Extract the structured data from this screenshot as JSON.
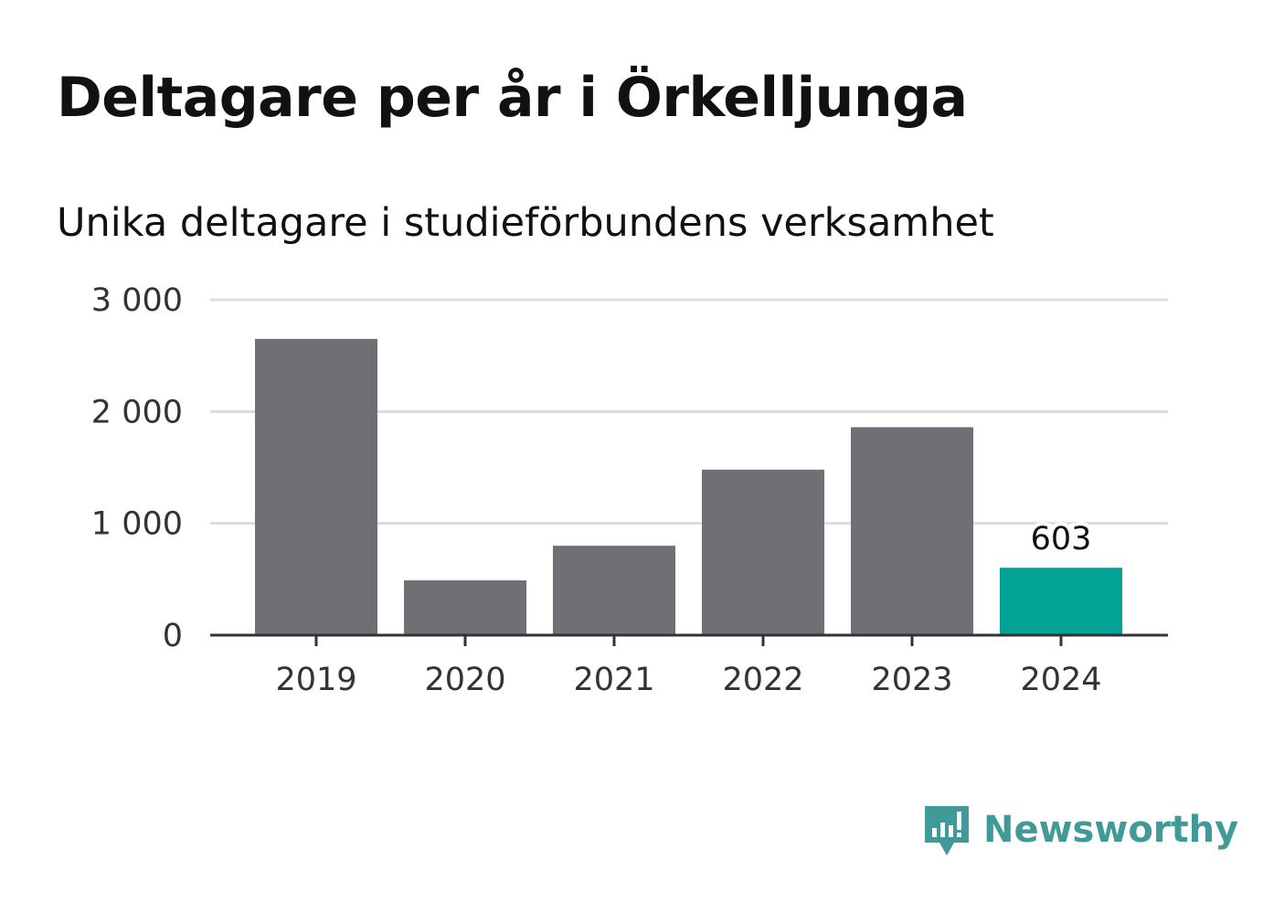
{
  "colors": {
    "bar": "#706f75",
    "highlight": "#00a396",
    "grid": "#dcdcdc",
    "axis": "#333333",
    "logo": "#3f9a98"
  },
  "brand": {
    "name": "Newsworthy",
    "icon": "newsworthy-logo-icon"
  },
  "chart_data": {
    "type": "bar",
    "title": "Deltagare per år i Örkelljunga",
    "subtitle": "Unika deltagare i studieförbundens verksamhet",
    "xlabel": "",
    "ylabel": "",
    "categories": [
      "2019",
      "2020",
      "2021",
      "2022",
      "2023",
      "2024"
    ],
    "values": [
      2650,
      490,
      800,
      1480,
      1860,
      603
    ],
    "highlight_index": 5,
    "data_labels": [
      {
        "category": "2024",
        "text": "603"
      }
    ],
    "ylim": [
      0,
      3000
    ],
    "yticks": [
      0,
      1000,
      2000,
      3000
    ],
    "ytick_labels": [
      "0",
      "1 000",
      "2 000",
      "3 000"
    ],
    "grid": true,
    "legend": "none"
  }
}
